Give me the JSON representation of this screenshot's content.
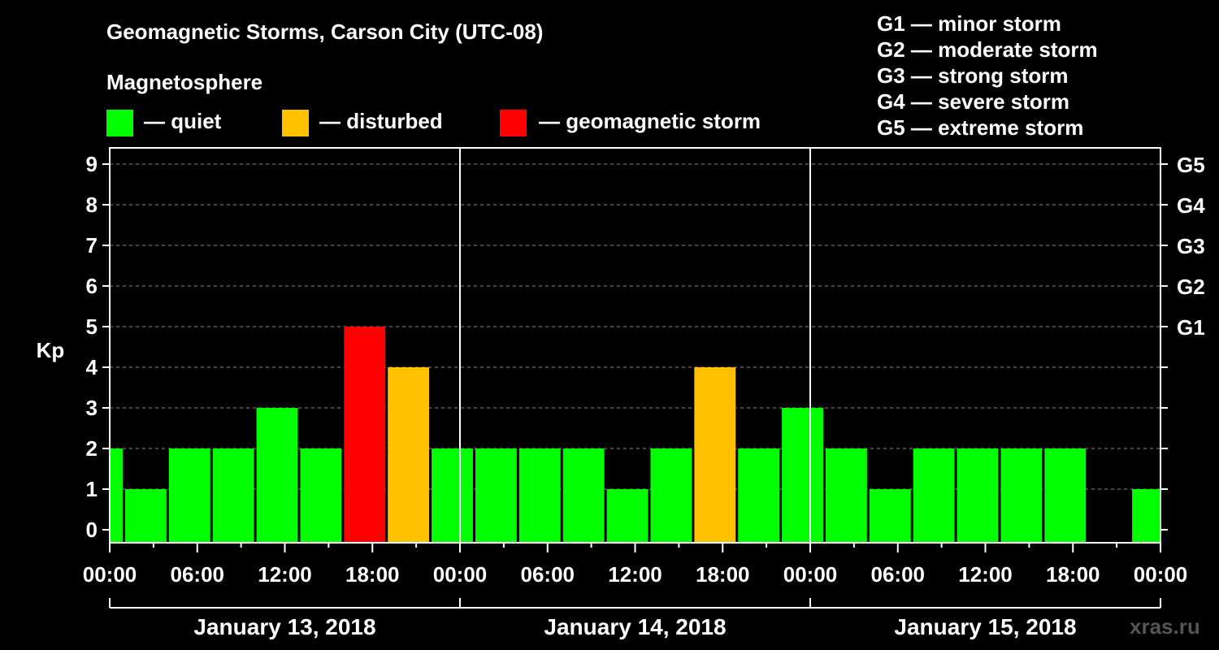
{
  "header": {
    "title": "Geomagnetic Storms, Carson City (UTC-08)",
    "legend_title": "Magnetosphere",
    "legend": [
      {
        "label": "— quiet",
        "color": "#00ff00"
      },
      {
        "label": "— disturbed",
        "color": "#ffc000"
      },
      {
        "label": "— geomagnetic storm",
        "color": "#ff0000"
      }
    ],
    "scale": [
      "G1 — minor storm",
      "G2 — moderate storm",
      "G3 — strong storm",
      "G4 — severe storm",
      "G5 — extreme storm"
    ]
  },
  "watermark": "xras.ru",
  "chart_data": {
    "type": "bar",
    "title": "Geomagnetic Storms, Carson City (UTC-08)",
    "ylabel": "Kp",
    "ylim": [
      0,
      9
    ],
    "yticks": [
      "0",
      "1",
      "2",
      "3",
      "4",
      "5",
      "6",
      "7",
      "8",
      "9"
    ],
    "right_axis": [
      {
        "kp": 5,
        "label": "G1"
      },
      {
        "kp": 6,
        "label": "G2"
      },
      {
        "kp": 7,
        "label": "G3"
      },
      {
        "kp": 8,
        "label": "G4"
      },
      {
        "kp": 9,
        "label": "G5"
      }
    ],
    "x_range_hours": [
      0,
      72
    ],
    "xticks": [
      "00:00",
      "06:00",
      "12:00",
      "18:00",
      "00:00",
      "06:00",
      "12:00",
      "18:00",
      "00:00",
      "06:00",
      "12:00",
      "18:00",
      "00:00"
    ],
    "days": [
      "January 13, 2018",
      "January 14, 2018",
      "January 15, 2018"
    ],
    "colors": {
      "quiet": "#00ff00",
      "disturbed": "#ffc000",
      "storm": "#ff0000"
    },
    "bars": [
      {
        "start_h": 0,
        "end_h": 1,
        "kp": 2,
        "level": "quiet"
      },
      {
        "start_h": 1,
        "end_h": 4,
        "kp": 1,
        "level": "quiet"
      },
      {
        "start_h": 4,
        "end_h": 7,
        "kp": 2,
        "level": "quiet"
      },
      {
        "start_h": 7,
        "end_h": 10,
        "kp": 2,
        "level": "quiet"
      },
      {
        "start_h": 10,
        "end_h": 13,
        "kp": 3,
        "level": "quiet"
      },
      {
        "start_h": 13,
        "end_h": 16,
        "kp": 2,
        "level": "quiet"
      },
      {
        "start_h": 16,
        "end_h": 19,
        "kp": 5,
        "level": "storm"
      },
      {
        "start_h": 19,
        "end_h": 22,
        "kp": 4,
        "level": "disturbed"
      },
      {
        "start_h": 22,
        "end_h": 25,
        "kp": 2,
        "level": "quiet"
      },
      {
        "start_h": 25,
        "end_h": 28,
        "kp": 2,
        "level": "quiet"
      },
      {
        "start_h": 28,
        "end_h": 31,
        "kp": 2,
        "level": "quiet"
      },
      {
        "start_h": 31,
        "end_h": 34,
        "kp": 2,
        "level": "quiet"
      },
      {
        "start_h": 34,
        "end_h": 37,
        "kp": 1,
        "level": "quiet"
      },
      {
        "start_h": 37,
        "end_h": 40,
        "kp": 2,
        "level": "quiet"
      },
      {
        "start_h": 40,
        "end_h": 43,
        "kp": 4,
        "level": "disturbed"
      },
      {
        "start_h": 43,
        "end_h": 46,
        "kp": 2,
        "level": "quiet"
      },
      {
        "start_h": 46,
        "end_h": 49,
        "kp": 3,
        "level": "quiet"
      },
      {
        "start_h": 49,
        "end_h": 52,
        "kp": 2,
        "level": "quiet"
      },
      {
        "start_h": 52,
        "end_h": 55,
        "kp": 1,
        "level": "quiet"
      },
      {
        "start_h": 55,
        "end_h": 58,
        "kp": 2,
        "level": "quiet"
      },
      {
        "start_h": 58,
        "end_h": 61,
        "kp": 2,
        "level": "quiet"
      },
      {
        "start_h": 61,
        "end_h": 64,
        "kp": 2,
        "level": "quiet"
      },
      {
        "start_h": 64,
        "end_h": 67,
        "kp": 2,
        "level": "quiet"
      },
      {
        "start_h": 70,
        "end_h": 72,
        "kp": 1,
        "level": "quiet"
      }
    ]
  }
}
